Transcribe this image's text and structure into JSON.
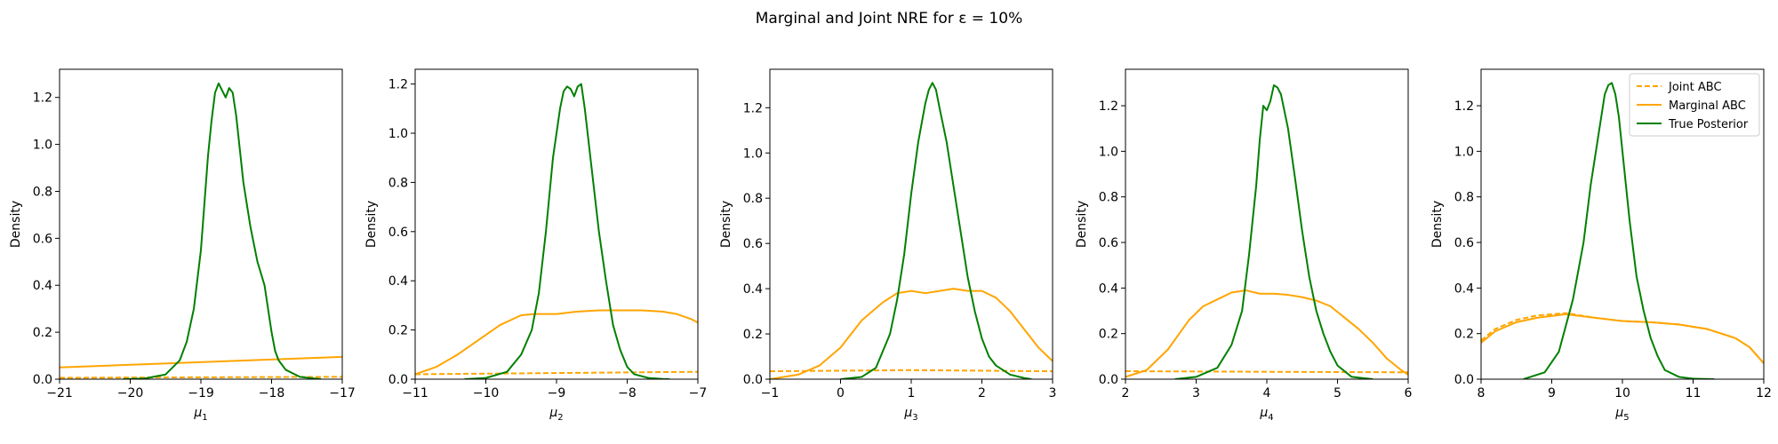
{
  "figure": {
    "title": "Marginal and Joint NRE for ε = 10%"
  },
  "legend": {
    "location": "upper right of last panel",
    "entries": [
      {
        "label": "Joint ABC",
        "color": "#ffa500",
        "style": "dashed"
      },
      {
        "label": "Marginal ABC",
        "color": "#ffa500",
        "style": "solid"
      },
      {
        "label": "True Posterior",
        "color": "#008000",
        "style": "solid"
      }
    ]
  },
  "chart_data": [
    {
      "type": "line",
      "xlabel_base": "μ",
      "xlabel_sub": "1",
      "ylabel": "Density",
      "xlim": [
        -21,
        -17
      ],
      "ylim": [
        0,
        1.32
      ],
      "xticks": [
        -21,
        -20,
        -19,
        -18,
        -17
      ],
      "yticks": [
        0.0,
        0.2,
        0.4,
        0.6,
        0.8,
        1.0,
        1.2
      ],
      "series": [
        {
          "name": "Joint ABC",
          "x": [
            -21,
            -17
          ],
          "y": [
            0.006,
            0.01
          ]
        },
        {
          "name": "Marginal ABC",
          "x": [
            -21,
            -17
          ],
          "y": [
            0.05,
            0.095
          ]
        },
        {
          "name": "True Posterior",
          "x": [
            -20.1,
            -19.8,
            -19.5,
            -19.3,
            -19.2,
            -19.1,
            -19.0,
            -18.95,
            -18.9,
            -18.85,
            -18.8,
            -18.75,
            -18.7,
            -18.65,
            -18.6,
            -18.55,
            -18.5,
            -18.45,
            -18.4,
            -18.3,
            -18.2,
            -18.1,
            -18.05,
            -18.0,
            -17.95,
            -17.9,
            -17.8,
            -17.6,
            -17.4,
            -17.3
          ],
          "y": [
            0.0,
            0.003,
            0.02,
            0.08,
            0.16,
            0.3,
            0.55,
            0.75,
            0.95,
            1.1,
            1.22,
            1.26,
            1.23,
            1.2,
            1.24,
            1.22,
            1.12,
            0.98,
            0.84,
            0.65,
            0.5,
            0.4,
            0.3,
            0.2,
            0.12,
            0.08,
            0.04,
            0.01,
            0.003,
            0.0
          ]
        }
      ]
    },
    {
      "type": "line",
      "xlabel_base": "μ",
      "xlabel_sub": "2",
      "ylabel": "Density",
      "xlim": [
        -11,
        -7
      ],
      "ylim": [
        0,
        1.26
      ],
      "xticks": [
        -11,
        -10,
        -9,
        -8,
        -7
      ],
      "yticks": [
        0.0,
        0.2,
        0.4,
        0.6,
        0.8,
        1.0,
        1.2
      ],
      "series": [
        {
          "name": "Joint ABC",
          "x": [
            -11,
            -7
          ],
          "y": [
            0.02,
            0.03
          ]
        },
        {
          "name": "Marginal ABC",
          "x": [
            -11,
            -10.7,
            -10.4,
            -10.1,
            -9.8,
            -9.5,
            -9.3,
            -9.0,
            -8.7,
            -8.4,
            -8.1,
            -7.8,
            -7.5,
            -7.3,
            -7.1,
            -7.0
          ],
          "y": [
            0.02,
            0.05,
            0.1,
            0.16,
            0.22,
            0.26,
            0.265,
            0.265,
            0.275,
            0.28,
            0.28,
            0.28,
            0.275,
            0.265,
            0.245,
            0.23
          ]
        },
        {
          "name": "True Posterior",
          "x": [
            -10.3,
            -10.0,
            -9.7,
            -9.5,
            -9.35,
            -9.25,
            -9.15,
            -9.05,
            -9.0,
            -8.95,
            -8.9,
            -8.85,
            -8.8,
            -8.75,
            -8.7,
            -8.65,
            -8.6,
            -8.5,
            -8.4,
            -8.3,
            -8.2,
            -8.1,
            -8.0,
            -7.9,
            -7.7,
            -7.5,
            -7.4
          ],
          "y": [
            0.0,
            0.005,
            0.03,
            0.1,
            0.2,
            0.35,
            0.6,
            0.9,
            1.0,
            1.1,
            1.17,
            1.19,
            1.18,
            1.15,
            1.19,
            1.2,
            1.1,
            0.85,
            0.6,
            0.4,
            0.22,
            0.12,
            0.05,
            0.02,
            0.005,
            0.001,
            0.0
          ]
        }
      ]
    },
    {
      "type": "line",
      "xlabel_base": "μ",
      "xlabel_sub": "3",
      "ylabel": "Density",
      "xlim": [
        -1,
        3
      ],
      "ylim": [
        0,
        1.37
      ],
      "xticks": [
        -1,
        0,
        1,
        2,
        3
      ],
      "yticks": [
        0.0,
        0.2,
        0.4,
        0.6,
        0.8,
        1.0,
        1.2
      ],
      "series": [
        {
          "name": "Joint ABC",
          "x": [
            -1,
            1,
            3
          ],
          "y": [
            0.035,
            0.04,
            0.035
          ]
        },
        {
          "name": "Marginal ABC",
          "x": [
            -1,
            -0.6,
            -0.3,
            0.0,
            0.3,
            0.6,
            0.8,
            1.0,
            1.2,
            1.4,
            1.6,
            1.8,
            2.0,
            2.2,
            2.4,
            2.6,
            2.8,
            3.0
          ],
          "y": [
            0.0,
            0.02,
            0.06,
            0.14,
            0.26,
            0.34,
            0.38,
            0.39,
            0.38,
            0.39,
            0.4,
            0.39,
            0.39,
            0.36,
            0.3,
            0.22,
            0.14,
            0.08
          ]
        },
        {
          "name": "True Posterior",
          "x": [
            0.0,
            0.3,
            0.5,
            0.7,
            0.8,
            0.9,
            1.0,
            1.1,
            1.2,
            1.25,
            1.3,
            1.35,
            1.4,
            1.5,
            1.6,
            1.7,
            1.8,
            1.9,
            2.0,
            2.1,
            2.2,
            2.4,
            2.6,
            2.7
          ],
          "y": [
            0.0,
            0.01,
            0.05,
            0.2,
            0.35,
            0.55,
            0.82,
            1.05,
            1.22,
            1.28,
            1.31,
            1.28,
            1.2,
            1.05,
            0.85,
            0.65,
            0.45,
            0.3,
            0.18,
            0.1,
            0.06,
            0.02,
            0.005,
            0.0
          ]
        }
      ]
    },
    {
      "type": "line",
      "xlabel_base": "μ",
      "xlabel_sub": "4",
      "ylabel": "Density",
      "xlim": [
        2,
        6
      ],
      "ylim": [
        0,
        1.36
      ],
      "xticks": [
        2,
        3,
        4,
        5,
        6
      ],
      "yticks": [
        0.0,
        0.2,
        0.4,
        0.6,
        0.8,
        1.0,
        1.2
      ],
      "series": [
        {
          "name": "Joint ABC",
          "x": [
            2,
            6
          ],
          "y": [
            0.035,
            0.03
          ]
        },
        {
          "name": "Marginal ABC",
          "x": [
            2.0,
            2.3,
            2.6,
            2.9,
            3.1,
            3.3,
            3.5,
            3.7,
            3.9,
            4.1,
            4.3,
            4.5,
            4.7,
            4.9,
            5.1,
            5.3,
            5.5,
            5.7,
            5.9,
            6.0
          ],
          "y": [
            0.01,
            0.04,
            0.13,
            0.26,
            0.32,
            0.35,
            0.38,
            0.39,
            0.375,
            0.375,
            0.37,
            0.36,
            0.345,
            0.32,
            0.27,
            0.22,
            0.16,
            0.09,
            0.04,
            0.02
          ]
        },
        {
          "name": "True Posterior",
          "x": [
            2.7,
            3.0,
            3.3,
            3.5,
            3.65,
            3.75,
            3.85,
            3.9,
            3.95,
            4.0,
            4.05,
            4.1,
            4.15,
            4.2,
            4.3,
            4.4,
            4.5,
            4.6,
            4.7,
            4.8,
            4.9,
            5.0,
            5.2,
            5.5
          ],
          "y": [
            0.0,
            0.01,
            0.05,
            0.15,
            0.3,
            0.55,
            0.85,
            1.05,
            1.2,
            1.18,
            1.22,
            1.29,
            1.28,
            1.25,
            1.1,
            0.88,
            0.65,
            0.45,
            0.3,
            0.2,
            0.12,
            0.06,
            0.01,
            0.0
          ]
        }
      ]
    },
    {
      "type": "line",
      "xlabel_base": "μ",
      "xlabel_sub": "5",
      "ylabel": "Density",
      "xlim": [
        8,
        12
      ],
      "ylim": [
        0,
        1.36
      ],
      "xticks": [
        8,
        9,
        10,
        11,
        12
      ],
      "yticks": [
        0.0,
        0.2,
        0.4,
        0.6,
        0.8,
        1.0,
        1.2
      ],
      "series": [
        {
          "name": "Joint ABC",
          "x": [
            8.0,
            8.2,
            8.5,
            8.8,
            9.2,
            9.6,
            10.0,
            10.4,
            10.8,
            11.2,
            11.6,
            11.8,
            12.0
          ],
          "y": [
            0.17,
            0.22,
            0.26,
            0.28,
            0.29,
            0.27,
            0.255,
            0.25,
            0.24,
            0.22,
            0.18,
            0.14,
            0.07
          ]
        },
        {
          "name": "Marginal ABC",
          "x": [
            8.0,
            8.2,
            8.5,
            8.8,
            9.2,
            9.6,
            10.0,
            10.4,
            10.8,
            11.2,
            11.6,
            11.8,
            12.0
          ],
          "y": [
            0.16,
            0.21,
            0.25,
            0.27,
            0.285,
            0.27,
            0.255,
            0.25,
            0.24,
            0.22,
            0.18,
            0.14,
            0.07
          ]
        },
        {
          "name": "True Posterior",
          "x": [
            8.6,
            8.9,
            9.1,
            9.3,
            9.45,
            9.55,
            9.65,
            9.7,
            9.75,
            9.8,
            9.85,
            9.9,
            9.95,
            10.0,
            10.05,
            10.1,
            10.2,
            10.3,
            10.4,
            10.5,
            10.6,
            10.8,
            11.0,
            11.3
          ],
          "y": [
            0.0,
            0.03,
            0.12,
            0.35,
            0.6,
            0.85,
            1.05,
            1.15,
            1.25,
            1.29,
            1.3,
            1.25,
            1.15,
            1.0,
            0.85,
            0.7,
            0.45,
            0.3,
            0.18,
            0.1,
            0.04,
            0.01,
            0.002,
            0.0
          ]
        }
      ]
    }
  ]
}
